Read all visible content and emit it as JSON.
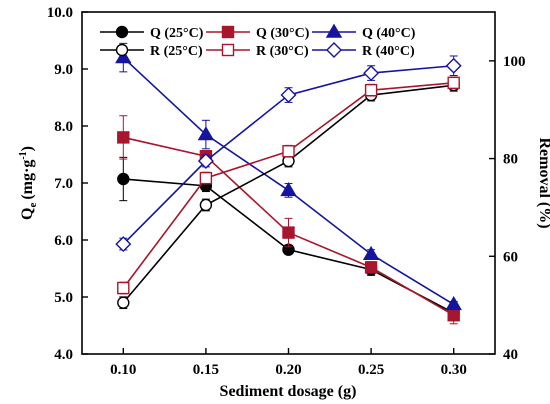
{
  "chart_data": {
    "type": "line",
    "xlabel": "Sediment dosage (g)",
    "ylabel_main": "Q",
    "ylabel_sub": "e",
    "ylabel_units_pre": "(mg·g",
    "ylabel_units_sup": "-1",
    "ylabel_units_post": ")",
    "y2label": "Removal (%)",
    "x": [
      0.1,
      0.15,
      0.2,
      0.25,
      0.3
    ],
    "x_ticks": [
      "0.10",
      "0.15",
      "0.20",
      "0.25",
      "0.30"
    ],
    "y_ticks": [
      "4.0",
      "5.0",
      "6.0",
      "7.0",
      "8.0",
      "9.0",
      "10.0"
    ],
    "y2_ticks": [
      "40",
      "60",
      "80",
      "100"
    ],
    "xlim": [
      0.075,
      0.325
    ],
    "ylim": [
      4.0,
      10.0
    ],
    "y2lim": [
      40,
      110
    ],
    "grid": false,
    "legend_position": "top",
    "series": [
      {
        "name": "Q (25°C)",
        "axis": "left",
        "marker": "circle",
        "filled": true,
        "color": "#000000",
        "values": [
          7.07,
          6.95,
          5.83,
          5.48,
          4.72
        ],
        "err": [
          0.38,
          0.1,
          0.08,
          0.1,
          0.08
        ]
      },
      {
        "name": "Q (30°C)",
        "axis": "left",
        "marker": "square",
        "filled": true,
        "color": "#a8162e",
        "values": [
          7.8,
          7.47,
          6.13,
          5.52,
          4.68
        ],
        "err": [
          0.38,
          0.1,
          0.25,
          0.1,
          0.15
        ]
      },
      {
        "name": "Q (40°C)",
        "axis": "left",
        "marker": "triangle",
        "filled": true,
        "color": "#14149e",
        "values": [
          9.2,
          7.85,
          6.87,
          5.75,
          4.87
        ],
        "err": [
          0.25,
          0.25,
          0.12,
          0.08,
          0.05
        ]
      },
      {
        "name": "R (25°C)",
        "axis": "right",
        "marker": "circle",
        "filled": false,
        "color": "#000000",
        "values": [
          50.5,
          70.5,
          79.5,
          93.0,
          95.0
        ],
        "err": [
          1.2,
          1.2,
          1.2,
          1.2,
          1.2
        ]
      },
      {
        "name": "R (30°C)",
        "axis": "right",
        "marker": "square",
        "filled": false,
        "color": "#a8162e",
        "values": [
          53.5,
          76.0,
          81.5,
          94.0,
          95.5
        ],
        "err": [
          1.2,
          1.2,
          1.2,
          1.2,
          1.2
        ]
      },
      {
        "name": "R (40°C)",
        "axis": "right",
        "marker": "diamond",
        "filled": false,
        "color": "#14149e",
        "values": [
          62.5,
          79.5,
          93.0,
          97.5,
          99.0
        ],
        "err": [
          1.2,
          1.2,
          1.5,
          1.5,
          2.0
        ]
      }
    ]
  }
}
